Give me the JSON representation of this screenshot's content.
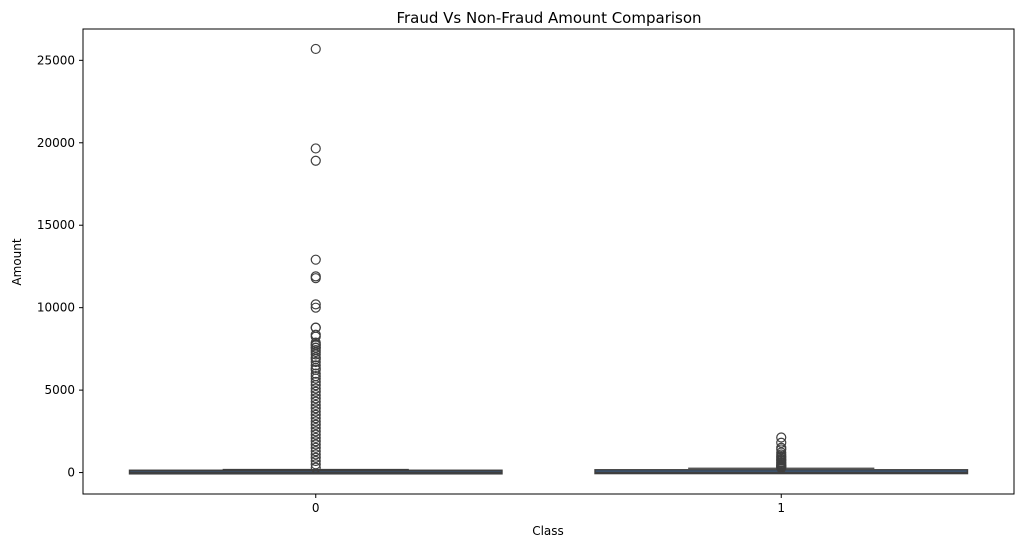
{
  "chart_data": {
    "type": "box",
    "title": "Fraud Vs Non-Fraud Amount Comparison",
    "xlabel": "Class",
    "ylabel": "Amount",
    "categories": [
      "0",
      "1"
    ],
    "ylim": [
      -1300,
      26900
    ],
    "yticks": [
      0,
      5000,
      10000,
      15000,
      20000,
      25000
    ],
    "grid": false,
    "legend": "none",
    "boxes": [
      {
        "category": "0",
        "q1": 5.6,
        "median": 22,
        "q3": 77,
        "whisker_low": 0,
        "whisker_high": 185,
        "outliers": [
          25691,
          19656,
          18910,
          12910,
          11898,
          11789,
          10199,
          10000,
          8787,
          8790,
          8360,
          8242,
          7879,
          7766,
          7712,
          7575,
          7560,
          7429,
          7307,
          7160,
          6982,
          6876,
          6706,
          6500,
          6338,
          6230,
          6000,
          5850,
          5700,
          5500,
          5300,
          5100,
          4900,
          4700,
          4500,
          4300,
          4100,
          3900,
          3700,
          3500,
          3300,
          3100,
          2900,
          2700,
          2500,
          2300,
          2100,
          1900,
          1700,
          1500,
          1300,
          1100,
          900,
          700,
          500,
          300
        ]
      },
      {
        "category": "1",
        "q1": 1,
        "median": 9.25,
        "q3": 106,
        "whisker_low": 0,
        "whisker_high": 262,
        "outliers": [
          2125,
          1809,
          1504,
          1402,
          1218,
          1096,
          996,
          925,
          829,
          766,
          723,
          635,
          580,
          512,
          454,
          402,
          364,
          320,
          280
        ]
      }
    ],
    "box_color": "#3a5d87",
    "line_color": "#3f3f3f"
  }
}
